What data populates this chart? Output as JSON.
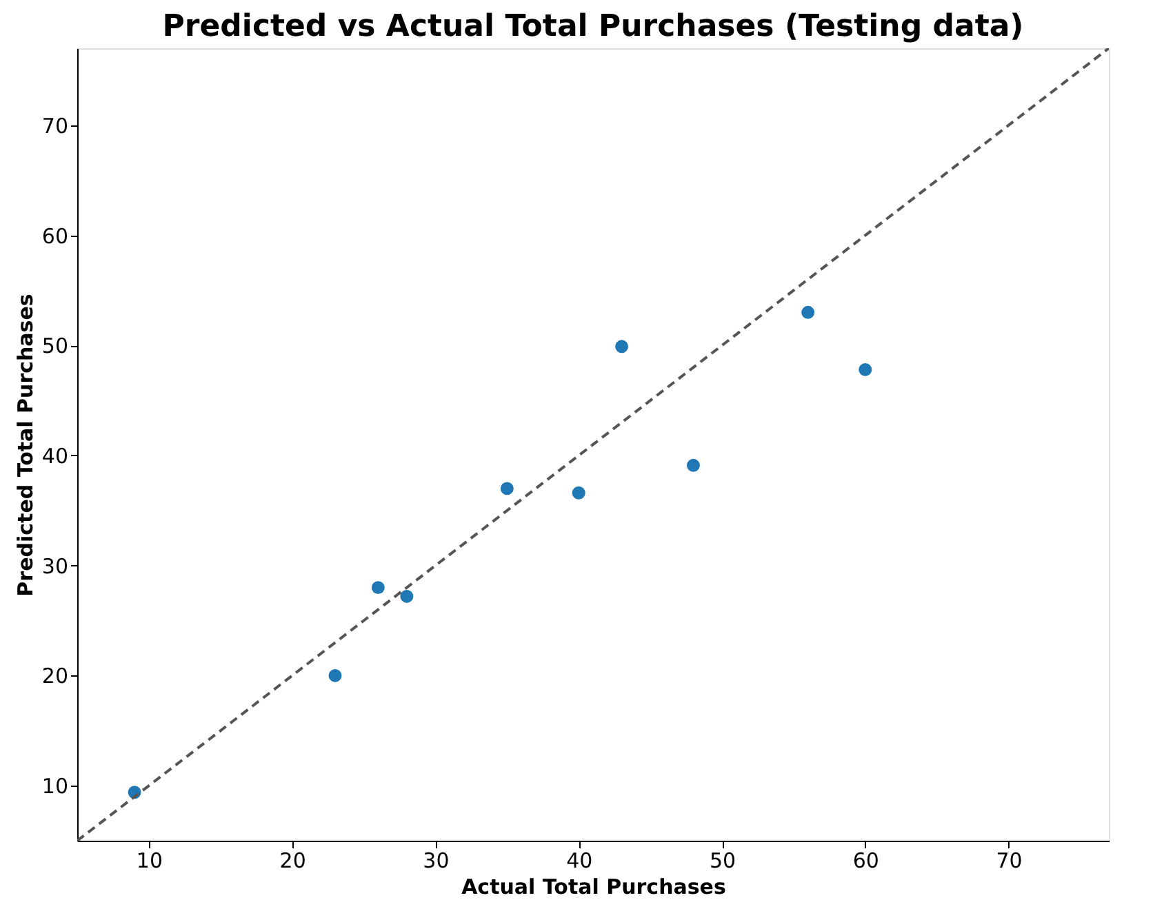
{
  "chart_data": {
    "type": "scatter",
    "title": "Predicted vs Actual Total Purchases (Testing data)",
    "xlabel": "Actual Total Purchases",
    "ylabel": "Predicted Total Purchases",
    "xlim": [
      5,
      77
    ],
    "ylim": [
      5,
      77
    ],
    "xticks": [
      10,
      20,
      30,
      40,
      50,
      60,
      70
    ],
    "yticks": [
      10,
      20,
      30,
      40,
      50,
      60,
      70
    ],
    "grid": false,
    "series": [
      {
        "type": "scatter",
        "color": "#1f77b4",
        "marker": "circle",
        "x": [
          9,
          23,
          26,
          28,
          35,
          40,
          43,
          48,
          56,
          60
        ],
        "values": [
          9.4,
          20,
          28,
          27.2,
          37,
          36.6,
          49.9,
          39.1,
          53,
          47.8
        ]
      },
      {
        "type": "line",
        "color": "#555555",
        "line_style": "dashed",
        "x": [
          5,
          77
        ],
        "values": [
          5,
          77
        ]
      }
    ]
  }
}
